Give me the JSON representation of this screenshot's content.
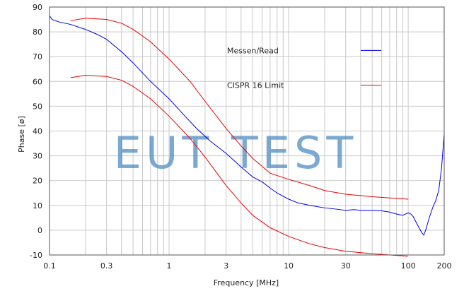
{
  "chart_data": {
    "type": "line",
    "title": "",
    "xlabel": "Frequency [MHz]",
    "ylabel": "Phase [ø]",
    "xscale": "log",
    "xlim": [
      0.1,
      200
    ],
    "ylim": [
      -10,
      90
    ],
    "grid": true,
    "legend_position": "top-right",
    "x_ticks": [
      {
        "value": 0.1,
        "label": "0.1"
      },
      {
        "value": 0.3,
        "label": "0.3"
      },
      {
        "value": 1,
        "label": "1"
      },
      {
        "value": 3,
        "label": "3"
      },
      {
        "value": 10,
        "label": "10"
      },
      {
        "value": 30,
        "label": "30"
      },
      {
        "value": 100,
        "label": "100"
      },
      {
        "value": 200,
        "label": "200"
      }
    ],
    "y_ticks": [
      {
        "value": -10,
        "label": "-10"
      },
      {
        "value": 0,
        "label": "0"
      },
      {
        "value": 10,
        "label": "10"
      },
      {
        "value": 20,
        "label": "20"
      },
      {
        "value": 30,
        "label": "30"
      },
      {
        "value": 40,
        "label": "40"
      },
      {
        "value": 50,
        "label": "50"
      },
      {
        "value": 60,
        "label": "60"
      },
      {
        "value": 70,
        "label": "70"
      },
      {
        "value": 80,
        "label": "80"
      },
      {
        "value": 90,
        "label": "90"
      }
    ],
    "series": [
      {
        "name": "Messen/Read",
        "color": "#0000ee",
        "points": [
          [
            0.1,
            86.5
          ],
          [
            0.105,
            85
          ],
          [
            0.12,
            84
          ],
          [
            0.15,
            83
          ],
          [
            0.2,
            81
          ],
          [
            0.25,
            79
          ],
          [
            0.3,
            77
          ],
          [
            0.4,
            72
          ],
          [
            0.5,
            67.5
          ],
          [
            0.7,
            60
          ],
          [
            1,
            53
          ],
          [
            1.3,
            47
          ],
          [
            1.7,
            41
          ],
          [
            2.2,
            36
          ],
          [
            3,
            31
          ],
          [
            4,
            25.5
          ],
          [
            5,
            21.5
          ],
          [
            6,
            19.5
          ],
          [
            7,
            17
          ],
          [
            8,
            15
          ],
          [
            10,
            12.5
          ],
          [
            12,
            11
          ],
          [
            15,
            10
          ],
          [
            20,
            9
          ],
          [
            25,
            8.5
          ],
          [
            30,
            8
          ],
          [
            35,
            8.3
          ],
          [
            40,
            8
          ],
          [
            50,
            8
          ],
          [
            60,
            7.8
          ],
          [
            70,
            7.3
          ],
          [
            80,
            6.5
          ],
          [
            90,
            6
          ],
          [
            100,
            7
          ],
          [
            105,
            6.5
          ],
          [
            110,
            5.5
          ],
          [
            120,
            2
          ],
          [
            130,
            -1
          ],
          [
            135,
            -2
          ],
          [
            140,
            0
          ],
          [
            150,
            5
          ],
          [
            160,
            9
          ],
          [
            170,
            12
          ],
          [
            180,
            16
          ],
          [
            190,
            25
          ],
          [
            200,
            39
          ]
        ]
      },
      {
        "name": "CISPR 16 Limit",
        "color": "#ee0000",
        "points": [
          [
            0.15,
            84.5
          ],
          [
            0.2,
            85.5
          ],
          [
            0.3,
            85
          ],
          [
            0.4,
            83.5
          ],
          [
            0.5,
            81
          ],
          [
            0.7,
            76
          ],
          [
            1,
            69
          ],
          [
            1.5,
            60
          ],
          [
            2,
            52
          ],
          [
            3,
            41
          ],
          [
            4,
            34
          ],
          [
            5,
            29
          ],
          [
            7,
            23
          ],
          [
            10,
            20.5
          ],
          [
            15,
            18
          ],
          [
            20,
            16
          ],
          [
            30,
            14.5
          ],
          [
            50,
            13.5
          ],
          [
            70,
            13
          ],
          [
            100,
            12.5
          ]
        ]
      },
      {
        "name": "",
        "color": "#ee0000",
        "points": [
          [
            0.15,
            61.5
          ],
          [
            0.2,
            62.5
          ],
          [
            0.3,
            62
          ],
          [
            0.4,
            60.5
          ],
          [
            0.5,
            58
          ],
          [
            0.7,
            53
          ],
          [
            1,
            46
          ],
          [
            1.5,
            37
          ],
          [
            2,
            29.5
          ],
          [
            3,
            18
          ],
          [
            4,
            11
          ],
          [
            5,
            6
          ],
          [
            7,
            1
          ],
          [
            10,
            -2.5
          ],
          [
            15,
            -5.5
          ],
          [
            20,
            -7
          ],
          [
            30,
            -8.5
          ],
          [
            50,
            -9.5
          ],
          [
            70,
            -10
          ],
          [
            100,
            -10.5
          ]
        ]
      }
    ],
    "legend": [
      {
        "label": "Messen/Read",
        "color": "#0000ee"
      },
      {
        "label": "CISPR 16 Limit",
        "color": "#ee0000"
      }
    ],
    "watermark": "EUT TEST"
  }
}
